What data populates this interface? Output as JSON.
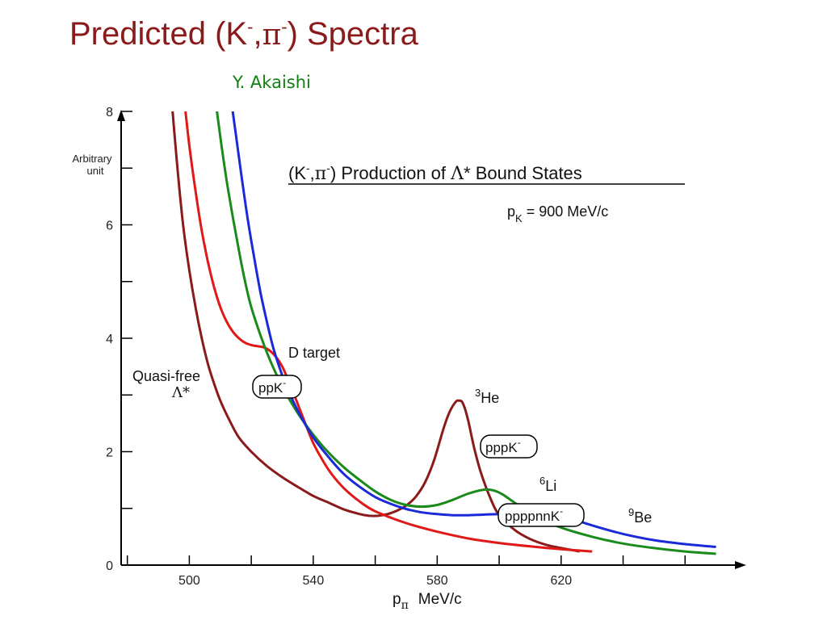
{
  "slide": {
    "title_prefix": "Predicted (K",
    "title_sup1": "-",
    "title_comma": ",",
    "title_pi": "π",
    "title_sup2": "-",
    "title_suffix": ") Spectra",
    "author": "Y. Akaishi"
  },
  "chart_data": {
    "type": "line",
    "title_parts": {
      "open": "(K",
      "sup1": "-",
      "comma": ",",
      "pi": "π",
      "sup2": "-",
      "mid": ") Production of ",
      "lambda": "Λ",
      "star": "* Bound States"
    },
    "momentum": {
      "p": "p",
      "sub": "K",
      "value": " = 900 MeV/c"
    },
    "ylabel_line1": "Arbitrary",
    "ylabel_line2": "unit",
    "xlabel": {
      "p": "p",
      "sub": "π",
      "unit": "MeV/c"
    },
    "xlim": [
      478,
      680
    ],
    "ylim": [
      0,
      8
    ],
    "x_ticks": [
      500,
      540,
      580,
      620
    ],
    "y_ticks": [
      0,
      2,
      4,
      6,
      8
    ],
    "x_minor_ticks": [
      480,
      500,
      520,
      540,
      560,
      580,
      600,
      620,
      640,
      660
    ],
    "y_minor_ticks": [
      1,
      3,
      5,
      7
    ],
    "grid": false,
    "series": [
      {
        "color": "#8b1a1a",
        "x": [
          494,
          496,
          498,
          500,
          502,
          504,
          506,
          508,
          510,
          513,
          516,
          520,
          525,
          530,
          535,
          540,
          545,
          550,
          555,
          558,
          561,
          564,
          567,
          570,
          573,
          576,
          579,
          582,
          584,
          586,
          587,
          588,
          589,
          590,
          591,
          592,
          594,
          597,
          600,
          605,
          610,
          615,
          620,
          626
        ],
        "y": [
          8.4,
          7.1,
          6.0,
          5.2,
          4.55,
          4.0,
          3.55,
          3.2,
          2.9,
          2.55,
          2.25,
          2.0,
          1.75,
          1.55,
          1.38,
          1.22,
          1.1,
          0.98,
          0.9,
          0.87,
          0.87,
          0.9,
          0.96,
          1.05,
          1.2,
          1.45,
          1.85,
          2.4,
          2.7,
          2.88,
          2.9,
          2.88,
          2.75,
          2.55,
          2.3,
          2.05,
          1.65,
          1.2,
          0.88,
          0.62,
          0.46,
          0.36,
          0.3,
          0.24
        ]
      },
      {
        "color": "#e01818",
        "x": [
          498,
          500,
          502,
          504,
          506,
          508,
          510,
          512,
          514,
          516,
          518,
          520,
          522,
          524,
          526,
          528,
          530,
          532,
          534,
          536,
          538,
          540,
          543,
          546,
          550,
          555,
          560,
          570,
          580,
          590,
          600,
          610,
          620,
          630
        ],
        "y": [
          8.4,
          7.4,
          6.6,
          5.9,
          5.35,
          4.9,
          4.55,
          4.3,
          4.12,
          4.0,
          3.92,
          3.88,
          3.86,
          3.84,
          3.78,
          3.67,
          3.5,
          3.25,
          2.98,
          2.7,
          2.42,
          2.15,
          1.85,
          1.6,
          1.35,
          1.12,
          0.95,
          0.74,
          0.59,
          0.47,
          0.39,
          0.33,
          0.28,
          0.24
        ]
      },
      {
        "color": "#1a8a1a",
        "x": [
          508,
          510,
          512,
          514,
          516,
          518,
          520,
          523,
          526,
          530,
          535,
          540,
          545,
          550,
          555,
          560,
          565,
          570,
          575,
          580,
          585,
          590,
          595,
          598,
          601,
          605,
          610,
          615,
          620,
          630,
          640,
          650,
          660,
          670
        ],
        "y": [
          8.4,
          7.55,
          6.8,
          6.15,
          5.55,
          5.0,
          4.55,
          4.05,
          3.62,
          3.15,
          2.68,
          2.3,
          1.98,
          1.72,
          1.5,
          1.3,
          1.15,
          1.06,
          1.03,
          1.06,
          1.15,
          1.26,
          1.33,
          1.32,
          1.25,
          1.1,
          0.92,
          0.78,
          0.66,
          0.5,
          0.38,
          0.3,
          0.24,
          0.2
        ]
      },
      {
        "color": "#1a2ad8",
        "x": [
          513,
          515,
          517,
          519,
          521,
          523,
          525,
          527,
          529,
          531,
          533,
          536,
          540,
          545,
          550,
          555,
          560,
          565,
          570,
          575,
          580,
          585,
          590,
          595,
          600,
          605,
          610,
          615,
          620,
          630,
          640,
          650,
          660,
          670
        ],
        "y": [
          8.4,
          7.6,
          6.8,
          6.05,
          5.4,
          4.8,
          4.3,
          3.85,
          3.5,
          3.2,
          2.95,
          2.62,
          2.25,
          1.9,
          1.6,
          1.38,
          1.2,
          1.08,
          0.99,
          0.93,
          0.9,
          0.88,
          0.88,
          0.89,
          0.9,
          0.91,
          0.92,
          0.92,
          0.88,
          0.7,
          0.55,
          0.44,
          0.37,
          0.32
        ]
      }
    ],
    "annotations": {
      "d_target": "D target",
      "quasi_free": "Quasi-free",
      "lambda_star": "Λ*",
      "he3": {
        "sup": "3",
        "text": "He"
      },
      "li6": {
        "sup": "6",
        "text": "Li"
      },
      "be9": {
        "sup": "9",
        "text": "Be"
      },
      "ppk": {
        "text": "ppK",
        "sup": "-",
        "color": "#e01818"
      },
      "pppk": {
        "text": "pppK",
        "sup": "-",
        "color": "#8b1a1a"
      },
      "ppppnnk": {
        "text": "ppppnnK",
        "sup": "-",
        "color": "#1a8a1a"
      }
    }
  }
}
